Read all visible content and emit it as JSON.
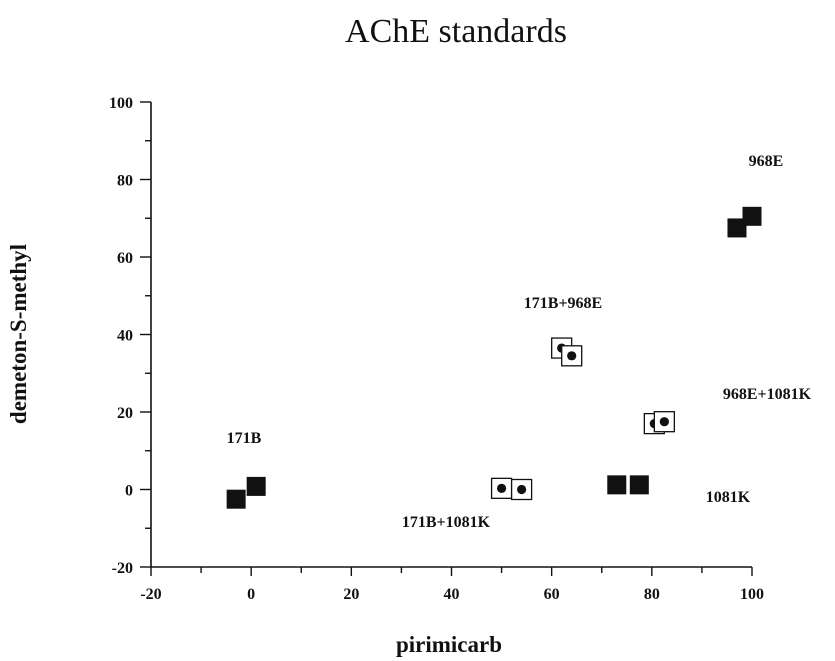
{
  "chart_data": {
    "type": "scatter",
    "title": "AChE  standards",
    "xlabel": "pirimicarb",
    "ylabel": "demeton-S-methyl",
    "xlim": [
      -20,
      100
    ],
    "ylim": [
      -20,
      100
    ],
    "xticks": [
      -20,
      0,
      20,
      40,
      60,
      80,
      100
    ],
    "yticks": [
      -20,
      0,
      20,
      40,
      60,
      80,
      100
    ],
    "xticks_minor_step": 10,
    "yticks_minor_step": 10,
    "grid": false,
    "legend": "none",
    "groups": [
      {
        "label": "171B",
        "marker": "filled-square",
        "points": [
          [
            -3,
            -2.5
          ],
          [
            1,
            0.8
          ]
        ]
      },
      {
        "label": "968E",
        "marker": "filled-square",
        "points": [
          [
            97,
            67.5
          ],
          [
            100,
            70.5
          ]
        ]
      },
      {
        "label": "1081K",
        "marker": "filled-square",
        "points": [
          [
            73,
            1.2
          ],
          [
            77.5,
            1.2
          ]
        ]
      },
      {
        "label": "171B+968E",
        "marker": "open-square-dot",
        "points": [
          [
            62,
            36.5
          ],
          [
            64,
            34.5
          ]
        ]
      },
      {
        "label": "968E+1081K",
        "marker": "open-square-dot",
        "points": [
          [
            80.5,
            17
          ],
          [
            82.5,
            17.5
          ]
        ]
      },
      {
        "label": "171B+1081K",
        "marker": "open-square-dot",
        "points": [
          [
            50,
            0.3
          ],
          [
            54,
            0
          ]
        ]
      }
    ]
  }
}
